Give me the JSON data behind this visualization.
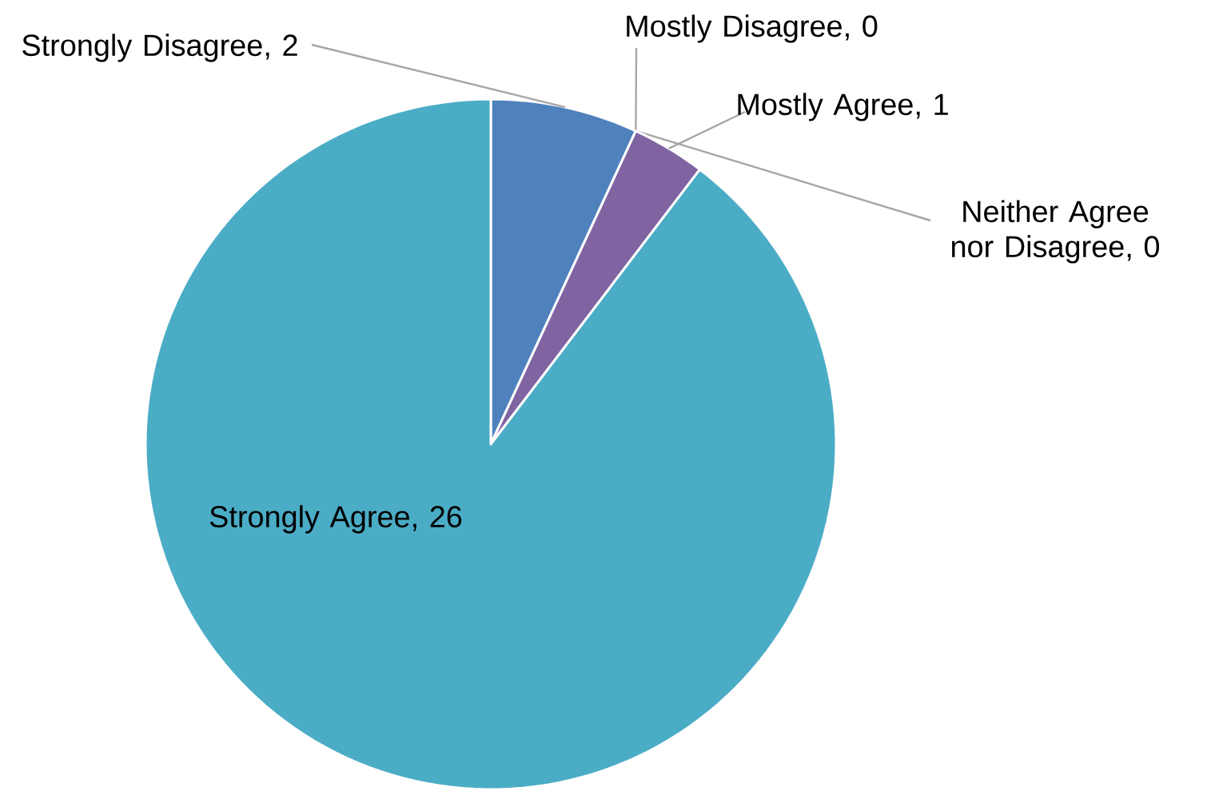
{
  "chart_data": {
    "type": "pie",
    "categories": [
      "Strongly Disagree",
      "Mostly Disagree",
      "Neither Agree nor Disagree",
      "Mostly Agree",
      "Strongly Agree"
    ],
    "values": [
      2,
      0,
      0,
      1,
      26
    ],
    "colors": [
      "#4f81bd",
      "#c0504d",
      "#9bbb59",
      "#8064a2",
      "#4bacc6"
    ],
    "value_labels": [
      ", 2",
      ", 0",
      ", 0",
      ", 1",
      ", 26"
    ],
    "legend": false
  }
}
